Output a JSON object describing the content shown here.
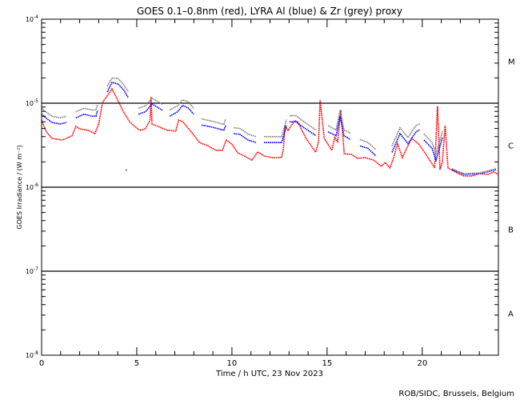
{
  "chart_data": {
    "type": "scatter",
    "title": "GOES 0.1–0.8nm (red), LYRA Al (blue) & Zr (grey) proxy",
    "xlabel": "Time / h UTC, 23 Nov 2023",
    "ylabel": "GOES Irradiance / (W m⁻²)",
    "xlim": [
      0,
      24
    ],
    "ylim": [
      1e-08,
      0.0001
    ],
    "yscale": "log",
    "x_ticks": [
      0,
      5,
      10,
      15,
      20
    ],
    "x_tick_labels": [
      "0",
      "5",
      "10",
      "15",
      "20"
    ],
    "y_ticks": [
      0.0001,
      1e-05,
      1e-06,
      1e-07,
      1e-08
    ],
    "y_tick_labels": [
      {
        "base": "10",
        "exp": "-4"
      },
      {
        "base": "10",
        "exp": "-5"
      },
      {
        "base": "10",
        "exp": "-6"
      },
      {
        "base": "10",
        "exp": "-7"
      },
      {
        "base": "10",
        "exp": "-8"
      }
    ],
    "flare_class_lines": [
      1e-05,
      1e-06,
      1e-07
    ],
    "flare_classes": [
      {
        "label": "M",
        "low": 1e-05,
        "high": 0.0001
      },
      {
        "label": "C",
        "low": 1e-06,
        "high": 1e-05
      },
      {
        "label": "B",
        "low": 1e-07,
        "high": 1e-06
      },
      {
        "label": "A",
        "low": 1e-08,
        "high": 1e-07
      }
    ],
    "series": [
      {
        "name": "GOES 0.1-0.8nm",
        "color": "#ff0000",
        "segments": [
          [
            [
              0,
              6.3e-06
            ],
            [
              0.25,
              4.55e-06
            ],
            [
              0.55,
              3.8e-06
            ],
            [
              1.1,
              3.65e-06
            ],
            [
              1.6,
              4.1e-06
            ],
            [
              1.8,
              5.3e-06
            ],
            [
              2.0,
              4.95e-06
            ],
            [
              2.45,
              4.75e-06
            ],
            [
              2.8,
              4.35e-06
            ],
            [
              3.0,
              5.65e-06
            ],
            [
              3.2,
              1.02e-05
            ],
            [
              3.5,
              1.27e-05
            ],
            [
              3.7,
              1.48e-05
            ],
            [
              4.0,
              1.09e-05
            ],
            [
              4.3,
              7.9e-06
            ],
            [
              4.65,
              5.9e-06
            ],
            [
              5.15,
              4.75e-06
            ],
            [
              5.45,
              4.95e-06
            ],
            [
              5.7,
              6.3e-06
            ],
            [
              5.75,
              1.19e-05
            ],
            [
              5.8,
              5.65e-06
            ],
            [
              6.2,
              5.2e-06
            ],
            [
              6.6,
              4.75e-06
            ],
            [
              7.05,
              4.65e-06
            ],
            [
              7.2,
              6.3e-06
            ],
            [
              7.4,
              6.05e-06
            ],
            [
              7.9,
              4.45e-06
            ],
            [
              8.3,
              3.4e-06
            ],
            [
              8.75,
              3.1e-06
            ],
            [
              9.15,
              2.75e-06
            ],
            [
              9.5,
              2.75e-06
            ],
            [
              9.7,
              3.65e-06
            ],
            [
              10.0,
              3.25e-06
            ],
            [
              10.3,
              2.57e-06
            ],
            [
              10.65,
              2.35e-06
            ],
            [
              11.05,
              2.1e-06
            ],
            [
              11.35,
              2.63e-06
            ],
            [
              11.7,
              2.35e-06
            ],
            [
              12.1,
              2.25e-06
            ],
            [
              12.6,
              2.25e-06
            ],
            [
              12.7,
              2.8e-06
            ],
            [
              12.78,
              5.4e-06
            ],
            [
              12.95,
              4.75e-06
            ],
            [
              13.3,
              6.2e-06
            ],
            [
              13.45,
              6e-06
            ],
            [
              13.9,
              3.8e-06
            ],
            [
              14.4,
              2.6e-06
            ],
            [
              14.55,
              3.5e-06
            ],
            [
              14.63,
              1.09e-05
            ],
            [
              14.85,
              3.8e-06
            ],
            [
              15.25,
              2.75e-06
            ],
            [
              15.4,
              3.9e-06
            ],
            [
              15.55,
              3.5e-06
            ],
            [
              15.72,
              8.3e-06
            ],
            [
              15.9,
              2.5e-06
            ],
            [
              16.3,
              2.45e-06
            ],
            [
              16.6,
              2.2e-06
            ],
            [
              17.0,
              2.25e-06
            ],
            [
              17.45,
              2.1e-06
            ],
            [
              17.85,
              1.77e-06
            ],
            [
              18.05,
              1.97e-06
            ],
            [
              18.3,
              1.7e-06
            ],
            [
              18.5,
              2.25e-06
            ],
            [
              18.7,
              3.3e-06
            ],
            [
              18.95,
              2.25e-06
            ],
            [
              19.3,
              3.3e-06
            ],
            [
              19.45,
              3.8e-06
            ],
            [
              19.8,
              3.3e-06
            ],
            [
              20.2,
              2.45e-06
            ],
            [
              20.65,
              1.7e-06
            ],
            [
              20.8,
              9.2e-06
            ],
            [
              20.93,
              1.62e-06
            ],
            [
              21.05,
              1.97e-06
            ],
            [
              21.2,
              5.4e-06
            ],
            [
              21.35,
              1.7e-06
            ],
            [
              21.9,
              1.45e-06
            ],
            [
              22.2,
              1.36e-06
            ],
            [
              22.6,
              1.36e-06
            ],
            [
              23.0,
              1.45e-06
            ],
            [
              23.45,
              1.42e-06
            ],
            [
              23.75,
              1.52e-06
            ],
            [
              24,
              1.42e-06
            ]
          ]
        ]
      },
      {
        "name": "LYRA Al proxy",
        "color": "#0000ff",
        "segments": [
          [
            [
              0,
              7.4e-06
            ],
            [
              0.25,
              6.6e-06
            ],
            [
              0.55,
              5.9e-06
            ],
            [
              0.97,
              5.65e-06
            ],
            [
              1.3,
              5.9e-06
            ]
          ],
          [
            [
              1.8,
              6.7e-06
            ],
            [
              2.23,
              7.4e-06
            ],
            [
              2.65,
              7e-06
            ],
            [
              2.86,
              7e-06
            ],
            [
              2.94,
              8.2e-06
            ]
          ],
          [
            [
              3.45,
              1.36e-05
            ],
            [
              3.7,
              1.77e-05
            ],
            [
              4.03,
              1.69e-05
            ],
            [
              4.33,
              1.42e-05
            ],
            [
              4.54,
              1.17e-05
            ]
          ],
          [
            [
              5.09,
              7.4e-06
            ],
            [
              5.46,
              7.9e-06
            ],
            [
              5.8,
              9.8e-06
            ],
            [
              6.35,
              8.2e-06
            ]
          ],
          [
            [
              6.73,
              7e-06
            ],
            [
              7.15,
              7.9e-06
            ],
            [
              7.4,
              9.4e-06
            ],
            [
              7.7,
              8.8e-06
            ],
            [
              7.99,
              7.4e-06
            ]
          ],
          [
            [
              8.4,
              5.5e-06
            ],
            [
              8.95,
              5.2e-06
            ],
            [
              9.58,
              4.75e-06
            ],
            [
              9.67,
              5.5e-06
            ]
          ],
          [
            [
              10.09,
              4.35e-06
            ],
            [
              10.42,
              4.25e-06
            ],
            [
              10.84,
              3.65e-06
            ],
            [
              11.27,
              3.4e-06
            ]
          ],
          [
            [
              11.69,
              3.4e-06
            ],
            [
              12.61,
              3.4e-06
            ],
            [
              12.74,
              4.25e-06
            ],
            [
              12.86,
              5.4e-06
            ]
          ],
          [
            [
              13.03,
              6e-06
            ],
            [
              13.37,
              6e-06
            ],
            [
              13.79,
              5.1e-06
            ],
            [
              14.42,
              4.1e-06
            ]
          ],
          [
            [
              15.05,
              4.55e-06
            ],
            [
              15.47,
              4.1e-06
            ],
            [
              15.68,
              7e-06
            ],
            [
              15.89,
              4.1e-06
            ],
            [
              16.23,
              3.7e-06
            ]
          ],
          [
            [
              16.73,
              3.1e-06
            ],
            [
              17.15,
              2.9e-06
            ],
            [
              17.57,
              2.35e-06
            ]
          ],
          [
            [
              18.41,
              2.6e-06
            ],
            [
              18.83,
              4.35e-06
            ],
            [
              19.25,
              3.3e-06
            ],
            [
              19.67,
              4.55e-06
            ],
            [
              19.88,
              4.85e-06
            ]
          ],
          [
            [
              20.09,
              3.65e-06
            ],
            [
              20.51,
              2.9e-06
            ],
            [
              20.72,
              2.1e-06
            ],
            [
              21.06,
              3.9e-06
            ]
          ],
          [
            [
              21.56,
              1.62e-06
            ],
            [
              22.2,
              1.42e-06
            ],
            [
              23.03,
              1.45e-06
            ],
            [
              23.88,
              1.62e-06
            ]
          ],
          [
            [
              4.45,
              1.6e-06
            ]
          ]
        ]
      },
      {
        "name": "LYRA Zr proxy",
        "color": "#808080",
        "segments": [
          [
            [
              0,
              8.7e-06
            ],
            [
              0.25,
              7.8e-06
            ],
            [
              0.55,
              7e-06
            ],
            [
              0.97,
              6.7e-06
            ],
            [
              1.3,
              7e-06
            ]
          ],
          [
            [
              1.8,
              7.9e-06
            ],
            [
              2.23,
              8.7e-06
            ],
            [
              2.65,
              8.3e-06
            ],
            [
              2.86,
              8.3e-06
            ],
            [
              2.94,
              9.7e-06
            ]
          ],
          [
            [
              3.45,
              1.6e-05
            ],
            [
              3.7,
              2e-05
            ],
            [
              4.03,
              1.95e-05
            ],
            [
              4.33,
              1.65e-05
            ],
            [
              4.54,
              1.38e-05
            ]
          ],
          [
            [
              5.09,
              8.7e-06
            ],
            [
              5.46,
              9.3e-06
            ],
            [
              5.8,
              1.15e-05
            ],
            [
              6.35,
              9.7e-06
            ]
          ],
          [
            [
              6.73,
              8.3e-06
            ],
            [
              7.15,
              9.3e-06
            ],
            [
              7.4,
              1.1e-05
            ],
            [
              7.7,
              1.04e-05
            ],
            [
              7.99,
              8.7e-06
            ]
          ],
          [
            [
              8.4,
              6.5e-06
            ],
            [
              8.95,
              6.1e-06
            ],
            [
              9.58,
              5.6e-06
            ],
            [
              9.67,
              6.5e-06
            ]
          ],
          [
            [
              10.09,
              5.1e-06
            ],
            [
              10.42,
              5e-06
            ],
            [
              10.84,
              4.3e-06
            ],
            [
              11.27,
              4e-06
            ]
          ],
          [
            [
              11.69,
              4e-06
            ],
            [
              12.61,
              4e-06
            ],
            [
              12.74,
              5e-06
            ],
            [
              12.86,
              6.4e-06
            ]
          ],
          [
            [
              13.03,
              7.1e-06
            ],
            [
              13.37,
              7.1e-06
            ],
            [
              13.79,
              6e-06
            ],
            [
              14.42,
              4.8e-06
            ]
          ],
          [
            [
              15.05,
              5.4e-06
            ],
            [
              15.47,
              4.8e-06
            ],
            [
              15.68,
              8.3e-06
            ],
            [
              15.89,
              4.8e-06
            ],
            [
              16.23,
              4.4e-06
            ]
          ],
          [
            [
              16.73,
              3.7e-06
            ],
            [
              17.15,
              3.4e-06
            ],
            [
              17.57,
              2.8e-06
            ]
          ],
          [
            [
              18.41,
              3.1e-06
            ],
            [
              18.83,
              5.1e-06
            ],
            [
              19.25,
              3.9e-06
            ],
            [
              19.67,
              5.4e-06
            ],
            [
              19.88,
              5.7e-06
            ]
          ],
          [
            [
              20.09,
              4.3e-06
            ],
            [
              20.51,
              3.4e-06
            ],
            [
              20.72,
              2.5e-06
            ],
            [
              21.06,
              4.6e-06
            ]
          ],
          [
            [
              21.56,
              1.66e-06
            ],
            [
              22.2,
              1.45e-06
            ],
            [
              23.03,
              1.48e-06
            ],
            [
              23.88,
              1.66e-06
            ]
          ]
        ]
      }
    ]
  },
  "footer": "ROB/SIDC, Brussels, Belgium"
}
